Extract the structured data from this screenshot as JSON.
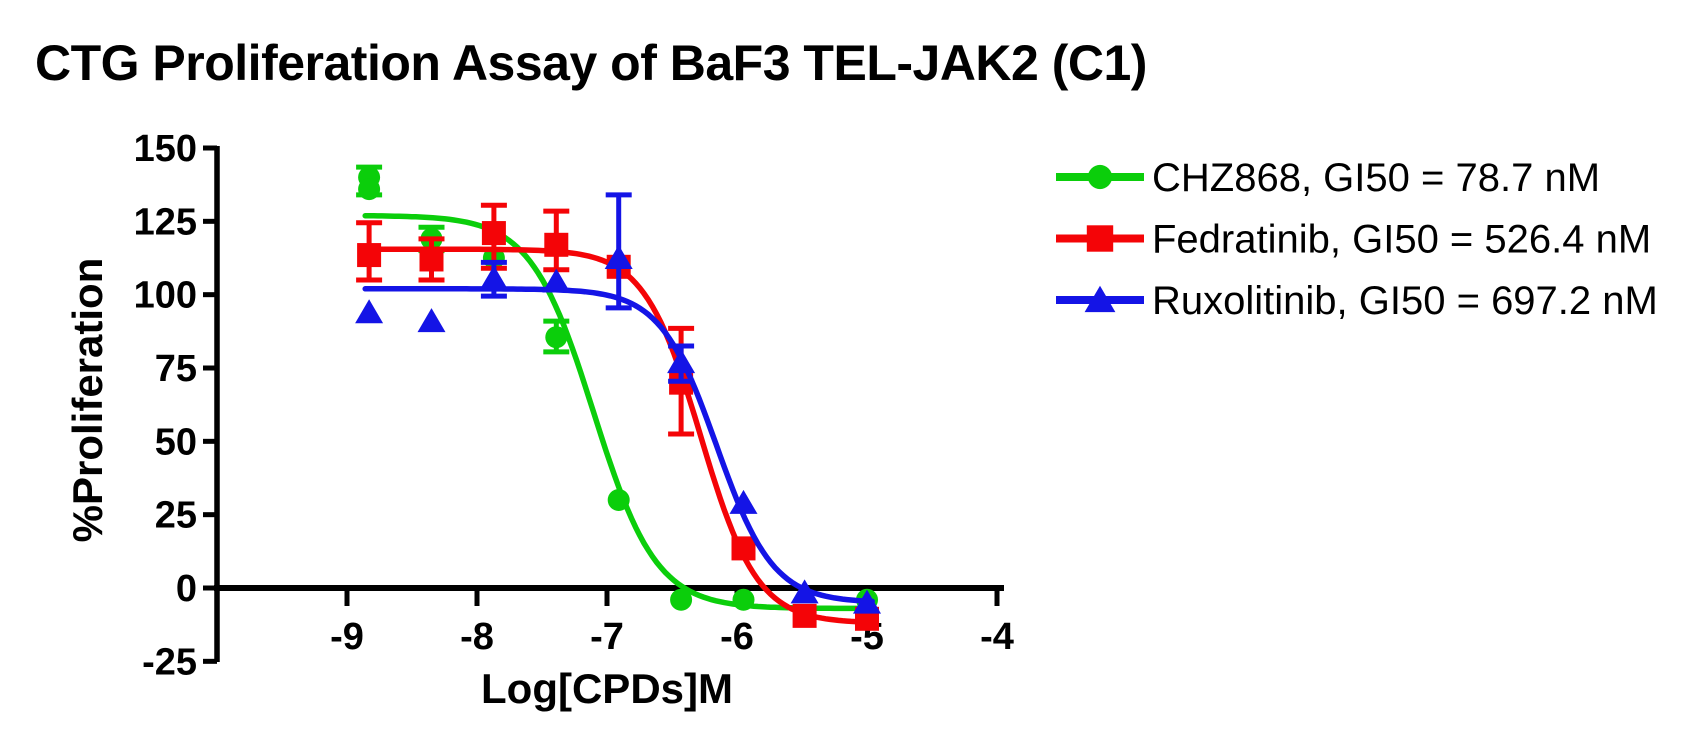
{
  "colors": {
    "background": "#ffffff",
    "axis": "#000000",
    "text": "#000000"
  },
  "chart_data": {
    "type": "scatter",
    "subtype": "dose-response-curves",
    "title": "CTG Proliferation Assay of BaF3 TEL-JAK2 (C1)",
    "xlabel": "Log[CPDs]M",
    "ylabel": "%Proliferation",
    "xlim": [
      -10,
      -3.94
    ],
    "ylim": [
      -25,
      150
    ],
    "x_ticks": [
      -9,
      -8,
      -7,
      -6,
      -5,
      -4
    ],
    "y_ticks": [
      150,
      125,
      100,
      75,
      50,
      25,
      0,
      -25
    ],
    "grid": false,
    "legend_position": "top-right",
    "series": [
      {
        "name": "CHZ868",
        "legend_label": "CHZ868, GI50 = 78.7 nM",
        "gi50_nM": 78.7,
        "color": "#0bce0b",
        "marker": "circle",
        "points": [
          {
            "x": -8.83,
            "y": [
              140,
              136
            ],
            "err": [
              134,
              143.5
            ]
          },
          {
            "x": -8.35,
            "y": [
              119
            ],
            "err": [
              115,
              123
            ]
          },
          {
            "x": -7.87,
            "y": [
              112.5
            ],
            "err": null
          },
          {
            "x": -7.39,
            "y": [
              85.5
            ],
            "err": [
              80.5,
              91
            ]
          },
          {
            "x": -6.91,
            "y": [
              30
            ],
            "err": null
          },
          {
            "x": -6.43,
            "y": [
              -4
            ],
            "err": null
          },
          {
            "x": -5.95,
            "y": [
              -4
            ],
            "err": null
          },
          {
            "x": -5.0,
            "y": [
              -4
            ],
            "err": null
          }
        ],
        "fit": {
          "top": 127,
          "bottom": -7,
          "log_gi50": -7.104,
          "hill": 1.8,
          "x_range": [
            -8.86,
            -4.96
          ]
        }
      },
      {
        "name": "Fedratinib",
        "legend_label": "Fedratinib, GI50 = 526.4 nM",
        "gi50_nM": 526.4,
        "color": "#f40407",
        "marker": "square",
        "points": [
          {
            "x": -8.83,
            "y": [
              113.5
            ],
            "err": [
              105,
              124.5
            ]
          },
          {
            "x": -8.35,
            "y": [
              112
            ],
            "err": [
              105,
              119
            ]
          },
          {
            "x": -7.87,
            "y": [
              121
            ],
            "err": [
              109,
              130.5
            ]
          },
          {
            "x": -7.39,
            "y": [
              117
            ],
            "err": [
              108.5,
              128.5
            ]
          },
          {
            "x": -6.91,
            "y": [
              109.5
            ],
            "err": null
          },
          {
            "x": -6.43,
            "y": [
              70
            ],
            "err": [
              52.5,
              88.5
            ]
          },
          {
            "x": -5.95,
            "y": [
              13.5
            ],
            "err": null
          },
          {
            "x": -5.48,
            "y": [
              -9.5
            ],
            "err": null
          },
          {
            "x": -5.0,
            "y": [
              -10.5
            ],
            "err": null
          }
        ],
        "fit": {
          "top": 115.5,
          "bottom": -12,
          "log_gi50": -6.279,
          "hill": 2.0,
          "x_range": [
            -8.86,
            -4.96
          ]
        }
      },
      {
        "name": "Ruxolitinib",
        "legend_label": "Ruxolitinib, GI50 = 697.2 nM",
        "gi50_nM": 697.2,
        "color": "#1414e6",
        "marker": "triangle",
        "points": [
          {
            "x": -8.83,
            "y": [
              94
            ],
            "err": null
          },
          {
            "x": -8.35,
            "y": [
              91
            ],
            "err": null
          },
          {
            "x": -7.87,
            "y": [
              105.5
            ],
            "err": [
              99.5,
              111
            ]
          },
          {
            "x": -7.39,
            "y": [
              104.5
            ],
            "err": null
          },
          {
            "x": -6.91,
            "y": [
              112.5
            ],
            "err": [
              95.5,
              134
            ]
          },
          {
            "x": -6.43,
            "y": [
              77
            ],
            "err": [
              70.5,
              82.5
            ]
          },
          {
            "x": -5.95,
            "y": [
              29
            ],
            "err": null
          },
          {
            "x": -5.48,
            "y": [
              -1.5
            ],
            "err": null
          },
          {
            "x": -5.0,
            "y": [
              -5
            ],
            "err": null
          }
        ],
        "fit": {
          "top": 102,
          "bottom": -5,
          "log_gi50": -6.157,
          "hill": 2.0,
          "x_range": [
            -8.86,
            -4.96
          ]
        }
      }
    ]
  }
}
